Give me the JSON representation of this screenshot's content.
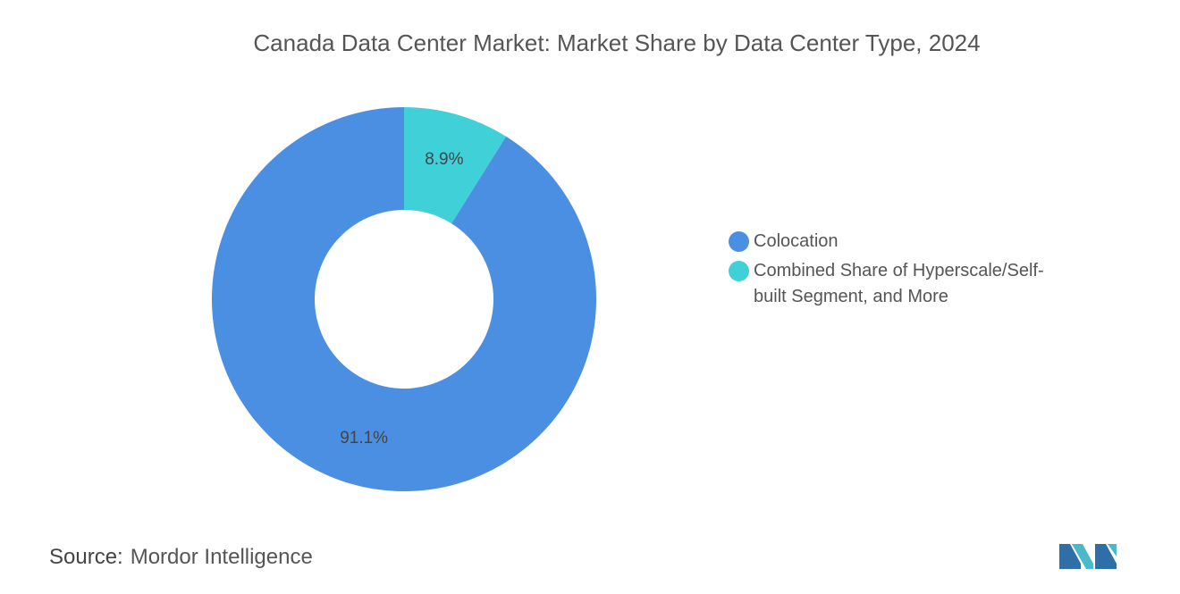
{
  "chart_data": {
    "type": "pie",
    "title": "Canada Data Center Market: Market Share by Data Center Type, 2024",
    "categories": [
      "Colocation",
      "Combined Share of Hyperscale/Self-built Segment, and More"
    ],
    "values": [
      91.1,
      8.9
    ],
    "value_labels": [
      "91.1%",
      "8.9%"
    ],
    "colors": [
      "#4a8fe2",
      "#40d0d8"
    ],
    "donut": true
  },
  "source_label": "Source:",
  "source": "Mordor Intelligence"
}
